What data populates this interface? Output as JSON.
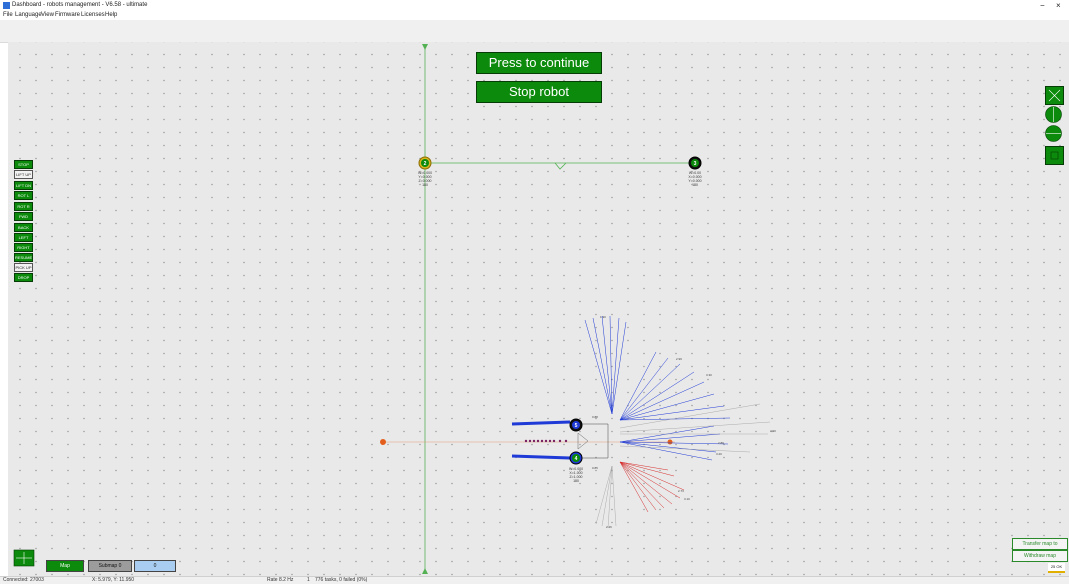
{
  "window": {
    "title": "Dashboard - robots management - V6.58 - ultimate"
  },
  "menu": {
    "items": [
      "File",
      "Language",
      "View",
      "Firmware",
      "Licenses",
      "Help"
    ]
  },
  "map": {
    "continue_label": "Press to continue",
    "stop_label": "Stop robot",
    "nodes": [
      {
        "id": "2",
        "lines": [
          "W=0.000",
          "Y=0.000",
          "Z=0.000",
          "180"
        ]
      },
      {
        "id": "3",
        "lines": [
          "W=0.00",
          "X=0.000",
          "Y=0.000",
          "180"
        ]
      },
      {
        "id": "5",
        "lines": []
      },
      {
        "id": "4",
        "lines": [
          "W=0.000",
          "X=1.000",
          "Z=1.000",
          "180"
        ]
      }
    ],
    "ray_labels": [
      "1.90",
      "2.99",
      "3.30",
      "2.90",
      "0.88",
      "2.89",
      "3.20",
      "2.73",
      "3.10",
      "0.85",
      "2.46"
    ]
  },
  "left_panel": {
    "buttons": [
      {
        "label": "STOP",
        "on": true
      },
      {
        "label": "LIFT UP",
        "on": false
      },
      {
        "label": "LIFT DN",
        "on": true
      },
      {
        "label": "ROT L",
        "on": true
      },
      {
        "label": "ROT R",
        "on": true
      },
      {
        "label": "FWD",
        "on": true
      },
      {
        "label": "BACK",
        "on": true
      },
      {
        "label": "LEFT",
        "on": true
      },
      {
        "label": "RIGHT",
        "on": true
      },
      {
        "label": "RESUME",
        "on": true
      },
      {
        "label": "PICK UP",
        "on": false
      },
      {
        "label": "DROP",
        "on": true
      }
    ]
  },
  "bottom": {
    "map_label": "Map",
    "submap_label": "Submap 0",
    "index_label": "0"
  },
  "bottom_right": {
    "btn1": "Transfer map to",
    "btn2": "Withdraw map",
    "zoom": "25 OK"
  },
  "statusbar": {
    "connected": "Connected: 27003",
    "coords": "X: 5.979, Y: 11.950",
    "rate": "Rate 8.2 Hz",
    "count": "1",
    "tasks": "776 tasks, 0 failed (0%)"
  },
  "colors": {
    "accent_green": "#0b8a0b",
    "ray_blue": "#1f3ad6",
    "ray_red": "#d62b2b",
    "path_green": "#53b153"
  }
}
